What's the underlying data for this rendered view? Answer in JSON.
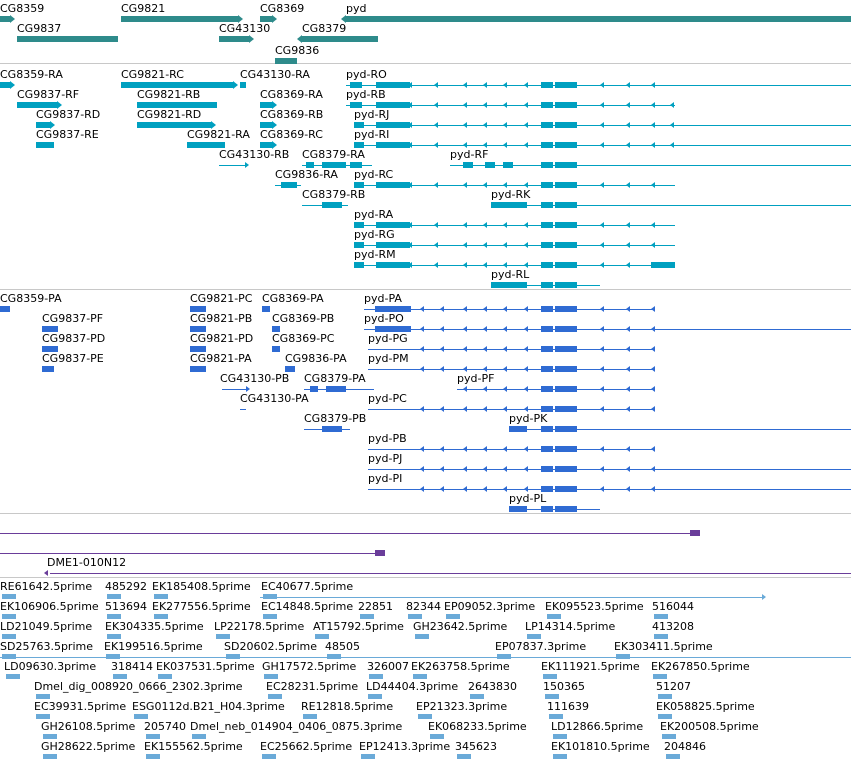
{
  "colors": {
    "gene": "#2e8b8b",
    "mrna": "#00a0c0",
    "cds": "#2f6bd3",
    "est": "#6aaad8",
    "cdna": "#6a3d9a",
    "separator": "#c8c8c8"
  },
  "tracks": {
    "genes": {
      "labels": [
        "CG8359",
        "CG9821",
        "CG8369",
        "pyd",
        "CG9837",
        "CG43130",
        "CG8379",
        "CG9836"
      ]
    },
    "transcripts": {
      "labels": [
        "CG8359-RA",
        "CG9821-RC",
        "CG43130-RA",
        "pyd-RO",
        "CG9837-RF",
        "CG9821-RB",
        "CG8369-RA",
        "pyd-RB",
        "CG9837-RD",
        "CG9821-RD",
        "CG8369-RB",
        "pyd-RJ",
        "CG9837-RE",
        "CG9821-RA",
        "CG8369-RC",
        "pyd-RI",
        "CG43130-RB",
        "CG8379-RA",
        "pyd-RF",
        "CG9836-RA",
        "pyd-RC",
        "CG8379-RB",
        "pyd-RK",
        "pyd-RA",
        "pyd-RG",
        "pyd-RM",
        "pyd-RL"
      ]
    },
    "proteins": {
      "labels": [
        "CG8359-PA",
        "CG9821-PC",
        "CG8369-PA",
        "pyd-PA",
        "CG9837-PF",
        "CG9821-PB",
        "CG8369-PB",
        "pyd-PO",
        "CG9837-PD",
        "CG9821-PD",
        "CG8369-PC",
        "pyd-PG",
        "CG9837-PE",
        "CG9821-PA",
        "CG9836-PA",
        "pyd-PM",
        "CG43130-PB",
        "CG8379-PA",
        "pyd-PF",
        "CG43130-PA",
        "pyd-PC",
        "CG8379-PB",
        "pyd-PK",
        "pyd-PB",
        "pyd-PJ",
        "pyd-PI",
        "pyd-PL"
      ]
    },
    "cdna": {
      "labels": [
        "DME1-010N12"
      ]
    },
    "ests": {
      "labels": [
        "RE61642.5prime",
        "485292",
        "EK185408.5prime",
        "EC40677.5prime",
        "EK106906.5prime",
        "513694",
        "EK277556.5prime",
        "EC14848.5prime",
        "22851",
        "82344",
        "EP09052.3prime",
        "EK095523.5prime",
        "516044",
        "LD21049.5prime",
        "EK304335.5prime",
        "LP22178.5prime",
        "AT15792.5prime",
        "GH23642.5prime",
        "LP14314.5prime",
        "413208",
        "SD25763.5prime",
        "EK199516.5prime",
        "SD20602.5prime",
        "48505",
        "EP07837.3prime",
        "EK303411.5prime",
        "LD09630.3prime",
        "318414",
        "EK037531.5prime",
        "GH17572.5prime",
        "326007",
        "EK263758.5prime",
        "EK111921.5prime",
        "EK267850.5prime",
        "Dmel_dig_008920_0666_2302.3prime",
        "EC28231.5prime",
        "LD44404.3prime",
        "2643830",
        "150365",
        "51207",
        "EC39931.5prime",
        "ESG0112d.B21_H04.3prime",
        "RE12818.5prime",
        "EP21323.3prime",
        "111639",
        "EK058825.5prime",
        "GH26108.5prime",
        "205740",
        "Dmel_neb_014904_0406_0875.3prime",
        "EK068233.5prime",
        "LD12866.5prime",
        "EK200508.5prime",
        "GH28622.5prime",
        "EK155562.5prime",
        "EC25662.5prime",
        "EP12413.3prime",
        "345623",
        "EK101810.5prime",
        "204846"
      ]
    }
  }
}
